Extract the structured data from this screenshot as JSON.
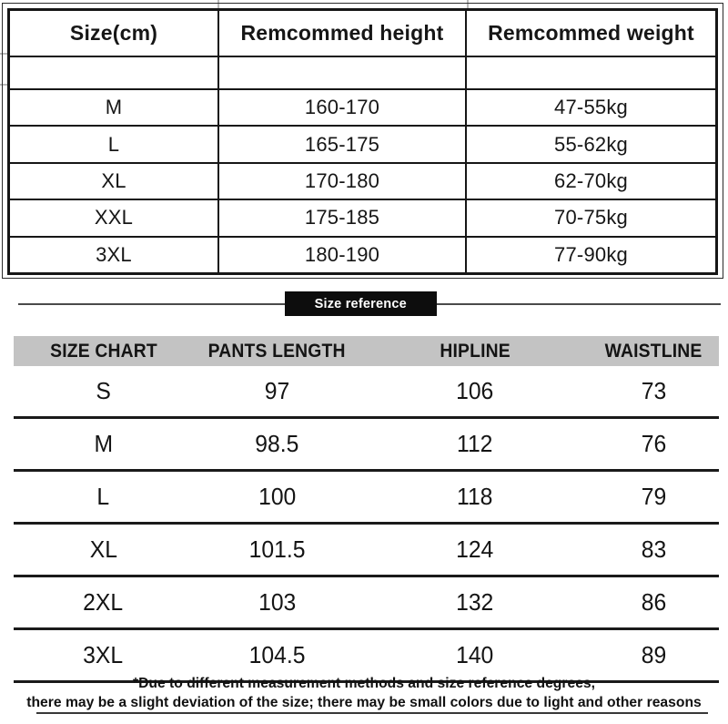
{
  "recommend_table": {
    "headers": [
      "Size(cm)",
      "Remcommed height",
      "Remcommed weight"
    ],
    "rows": [
      [
        "",
        "",
        ""
      ],
      [
        "M",
        "160-170",
        "47-55kg"
      ],
      [
        "L",
        "165-175",
        "55-62kg"
      ],
      [
        "XL",
        "170-180",
        "62-70kg"
      ],
      [
        "XXL",
        "175-185",
        "70-75kg"
      ],
      [
        "3XL",
        "180-190",
        "77-90kg"
      ]
    ]
  },
  "banner": {
    "label": "Size reference"
  },
  "size_chart_table": {
    "headers": [
      "SIZE CHART",
      "PANTS LENGTH",
      "HIPLINE",
      "WAISTLINE"
    ],
    "rows": [
      [
        "S",
        "97",
        "106",
        "73"
      ],
      [
        "M",
        "98.5",
        "112",
        "76"
      ],
      [
        "L",
        "100",
        "118",
        "79"
      ],
      [
        "XL",
        "101.5",
        "124",
        "83"
      ],
      [
        "2XL",
        "103",
        "132",
        "86"
      ],
      [
        "3XL",
        "104.5",
        "140",
        "89"
      ]
    ]
  },
  "footer": {
    "line1": "*Due to different measurement methods and size reference degrees,",
    "line2": "there may be a slight deviation of the size; there may be small colors due to light and other reasons"
  },
  "colors": {
    "text": "#161616",
    "table_border": "#161616",
    "header_band": "#c3c3c3",
    "banner_bg": "#0d0d0d",
    "banner_text": "#ffffff",
    "rule": "#4a4a4a"
  }
}
